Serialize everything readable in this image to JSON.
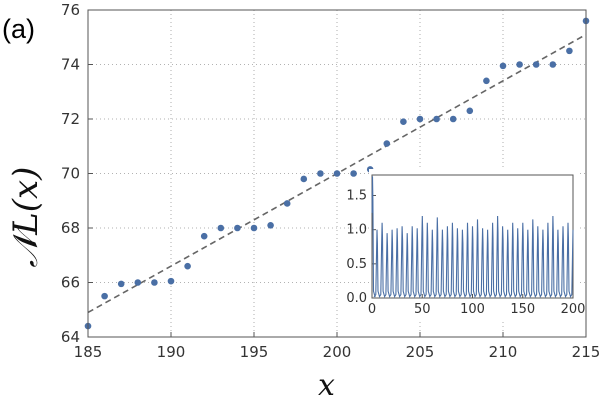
{
  "panel_label": "(a)",
  "chart_data": {
    "type": "scatter",
    "xlabel": "x",
    "ylabel": "𝒩L(x)",
    "xlim": [
      185,
      215
    ],
    "ylim": [
      64,
      76
    ],
    "xticks": [
      "185",
      "190",
      "195",
      "200",
      "205",
      "210",
      "215"
    ],
    "yticks": [
      "64",
      "66",
      "68",
      "70",
      "72",
      "74",
      "76"
    ],
    "grid": "dotted",
    "x": [
      185,
      186,
      187,
      188,
      189,
      190,
      191,
      192,
      193,
      194,
      195,
      196,
      197,
      198,
      199,
      200,
      201,
      202,
      203,
      204,
      205,
      206,
      207,
      208,
      209,
      210,
      211,
      212,
      213,
      214,
      215
    ],
    "y": [
      64.4,
      65.5,
      65.95,
      66.0,
      66.0,
      66.05,
      66.6,
      67.7,
      68.0,
      68.0,
      68.0,
      68.1,
      68.9,
      69.8,
      70.0,
      70.0,
      70.0,
      70.15,
      71.1,
      71.9,
      72.0,
      72.0,
      72.0,
      72.3,
      73.4,
      73.95,
      74.0,
      74.0,
      74.0,
      74.5,
      75.6
    ],
    "fit_line": {
      "style": "dashed",
      "x": [
        185,
        215
      ],
      "y": [
        64.9,
        75.1
      ]
    },
    "inset": {
      "type": "line",
      "xlim": [
        0,
        200
      ],
      "ylim": [
        0,
        1.8
      ],
      "xticks": [
        "0",
        "50",
        "100",
        "150",
        "200"
      ],
      "yticks": [
        "0.0",
        "0.5",
        "1.0",
        "1.5"
      ],
      "period": 5,
      "peaks": [
        1.78,
        1.0,
        1.1,
        0.95,
        1.0,
        1.02,
        1.05,
        0.95,
        1.05,
        1.02,
        1.2,
        1.1,
        1.0,
        1.18,
        1.0,
        1.05,
        1.1,
        1.02,
        1.0,
        1.1,
        1.05,
        1.15,
        1.02,
        1.0,
        1.1,
        1.2,
        1.05,
        1.0,
        1.1,
        1.02,
        1.1,
        1.0,
        1.15,
        1.05,
        1.0,
        1.1,
        1.2,
        1.0,
        1.05,
        1.1,
        1.0
      ]
    }
  },
  "colors": {
    "points": "#4a6fa5",
    "fit_line": "#666666",
    "grid": "#999999"
  }
}
